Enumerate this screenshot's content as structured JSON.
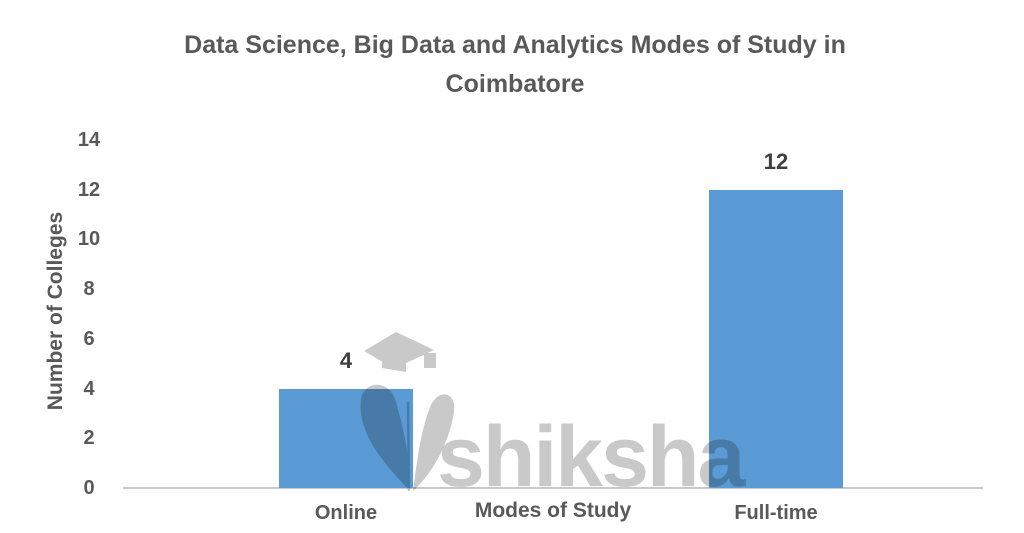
{
  "watermark": {
    "text": "shiksha"
  },
  "chart_data": {
    "type": "bar",
    "title": "Data Science, Big Data and Analytics Modes of Study in Coimbatore",
    "xlabel": "Modes of Study",
    "ylabel": "Number of Colleges",
    "categories": [
      "Online",
      "Full-time"
    ],
    "values": [
      4,
      12
    ],
    "data_labels": [
      "4",
      "12"
    ],
    "ylim": [
      0,
      14
    ],
    "yticks": [
      0,
      2,
      4,
      6,
      8,
      10,
      12,
      14
    ],
    "grid": false,
    "legend": false,
    "colors": {
      "bar": "#5B9BD5",
      "text": "#595959",
      "data_label": "#3f3f3f",
      "axis_line": "#c8c8c8",
      "watermark": "#c9c9c9"
    }
  }
}
